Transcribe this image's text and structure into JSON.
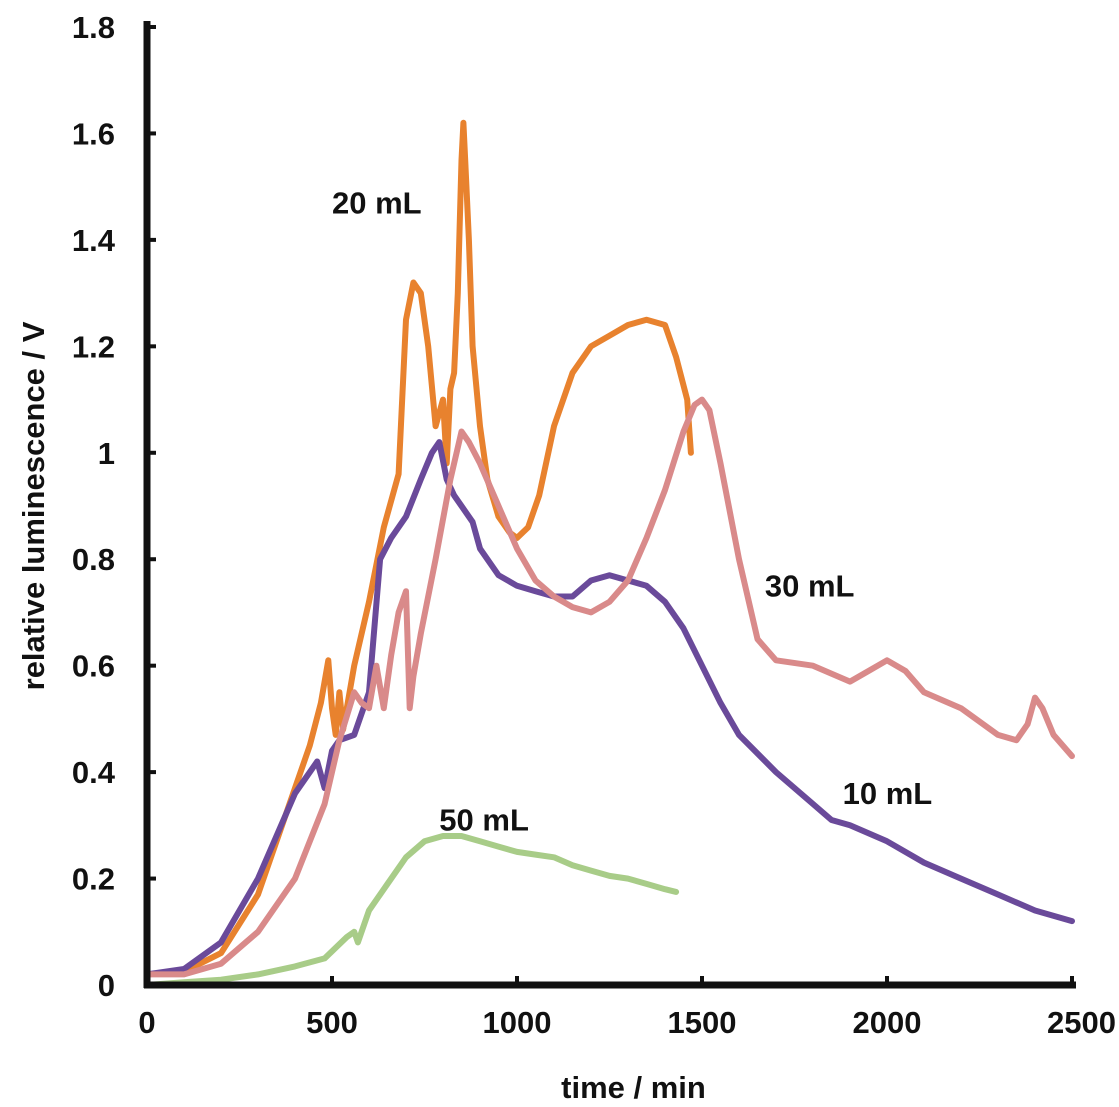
{
  "chart_data": {
    "type": "line",
    "title": "",
    "xlabel": "time / min",
    "ylabel": "relative luminescence / V",
    "xlim": [
      0,
      2500
    ],
    "ylim": [
      0,
      1.8
    ],
    "xticks": [
      0,
      500,
      1000,
      1500,
      2000,
      2500
    ],
    "xtick_labels": [
      "0",
      "500",
      "1000",
      "1500",
      "2000",
      "2500"
    ],
    "yticks": [
      0,
      0.2,
      0.4,
      0.6,
      0.8,
      1,
      1.2,
      1.4,
      1.6,
      1.8
    ],
    "ytick_labels": [
      "0",
      "0.2",
      "0.4",
      "0.6",
      "0.8",
      "1",
      "1.2",
      "1.4",
      "1.6",
      "1.8"
    ],
    "grid": false,
    "legend": "none",
    "series": [
      {
        "name": "20 mL",
        "color": "#E8822E",
        "x": [
          0,
          100,
          200,
          300,
          380,
          440,
          470,
          490,
          500,
          510,
          520,
          530,
          560,
          600,
          640,
          680,
          700,
          720,
          740,
          760,
          780,
          800,
          810,
          820,
          830,
          840,
          850,
          855,
          860,
          870,
          880,
          900,
          920,
          950,
          980,
          1000,
          1030,
          1060,
          1100,
          1150,
          1200,
          1250,
          1300,
          1350,
          1400,
          1430,
          1460,
          1470
        ],
        "values": [
          0.02,
          0.025,
          0.06,
          0.17,
          0.33,
          0.45,
          0.53,
          0.61,
          0.52,
          0.47,
          0.55,
          0.48,
          0.6,
          0.72,
          0.86,
          0.96,
          1.25,
          1.32,
          1.3,
          1.2,
          1.05,
          1.1,
          0.98,
          1.12,
          1.15,
          1.3,
          1.55,
          1.62,
          1.55,
          1.4,
          1.2,
          1.05,
          0.95,
          0.88,
          0.85,
          0.84,
          0.86,
          0.92,
          1.05,
          1.15,
          1.2,
          1.22,
          1.24,
          1.25,
          1.24,
          1.18,
          1.1,
          1.0
        ]
      },
      {
        "name": "10 mL",
        "color": "#6A4A9A",
        "x": [
          0,
          100,
          200,
          300,
          400,
          460,
          480,
          500,
          520,
          560,
          600,
          630,
          660,
          700,
          740,
          770,
          790,
          810,
          830,
          850,
          880,
          900,
          950,
          1000,
          1050,
          1100,
          1150,
          1200,
          1250,
          1300,
          1350,
          1400,
          1450,
          1500,
          1550,
          1600,
          1700,
          1800,
          1850,
          1900,
          2000,
          2100,
          2200,
          2300,
          2400,
          2500
        ],
        "values": [
          0.02,
          0.03,
          0.08,
          0.2,
          0.36,
          0.42,
          0.37,
          0.44,
          0.46,
          0.47,
          0.55,
          0.8,
          0.84,
          0.88,
          0.95,
          1.0,
          1.02,
          0.95,
          0.92,
          0.9,
          0.87,
          0.82,
          0.77,
          0.75,
          0.74,
          0.73,
          0.73,
          0.76,
          0.77,
          0.76,
          0.75,
          0.72,
          0.67,
          0.6,
          0.53,
          0.47,
          0.4,
          0.34,
          0.31,
          0.3,
          0.27,
          0.23,
          0.2,
          0.17,
          0.14,
          0.12
        ]
      },
      {
        "name": "30 mL",
        "color": "#D98A8A",
        "x": [
          0,
          100,
          200,
          300,
          400,
          480,
          520,
          560,
          580,
          600,
          620,
          640,
          660,
          680,
          700,
          710,
          720,
          740,
          780,
          820,
          850,
          870,
          900,
          950,
          1000,
          1050,
          1100,
          1150,
          1200,
          1250,
          1300,
          1350,
          1400,
          1450,
          1480,
          1500,
          1520,
          1550,
          1600,
          1650,
          1700,
          1800,
          1900,
          1950,
          2000,
          2050,
          2100,
          2200,
          2300,
          2350,
          2380,
          2400,
          2420,
          2450,
          2500
        ],
        "values": [
          0.02,
          0.02,
          0.04,
          0.1,
          0.2,
          0.34,
          0.46,
          0.55,
          0.53,
          0.52,
          0.6,
          0.52,
          0.62,
          0.7,
          0.74,
          0.52,
          0.58,
          0.66,
          0.8,
          0.95,
          1.04,
          1.02,
          0.98,
          0.9,
          0.82,
          0.76,
          0.73,
          0.71,
          0.7,
          0.72,
          0.76,
          0.84,
          0.93,
          1.04,
          1.09,
          1.1,
          1.08,
          0.98,
          0.8,
          0.65,
          0.61,
          0.6,
          0.57,
          0.59,
          0.61,
          0.59,
          0.55,
          0.52,
          0.47,
          0.46,
          0.49,
          0.54,
          0.52,
          0.47,
          0.43
        ]
      },
      {
        "name": "50 mL",
        "color": "#A8CC88",
        "x": [
          0,
          100,
          200,
          300,
          400,
          480,
          540,
          560,
          570,
          600,
          650,
          700,
          750,
          800,
          850,
          900,
          950,
          1000,
          1050,
          1100,
          1150,
          1200,
          1250,
          1300,
          1350,
          1400,
          1430
        ],
        "values": [
          0.0,
          0.005,
          0.01,
          0.02,
          0.035,
          0.05,
          0.09,
          0.1,
          0.08,
          0.14,
          0.19,
          0.24,
          0.27,
          0.28,
          0.28,
          0.27,
          0.26,
          0.25,
          0.245,
          0.24,
          0.225,
          0.215,
          0.205,
          0.2,
          0.19,
          0.18,
          0.175
        ]
      }
    ]
  }
}
